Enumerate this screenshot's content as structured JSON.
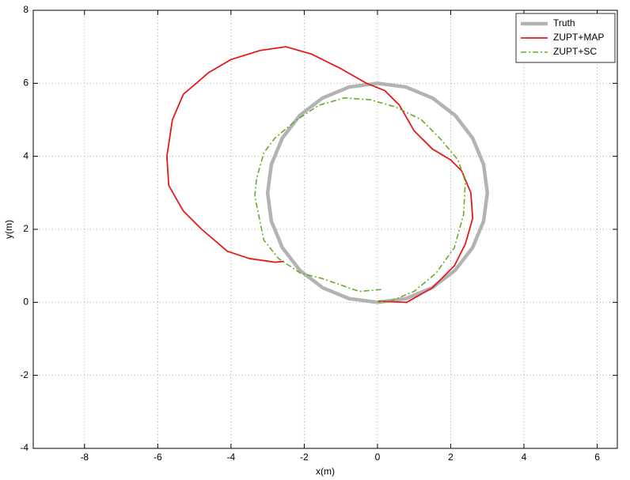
{
  "chart_data": {
    "type": "line",
    "xlabel": "x(m)",
    "ylabel": "y(m)",
    "xlim": [
      -9.4,
      6.55
    ],
    "ylim": [
      -4,
      8
    ],
    "xticks": [
      -8,
      -6,
      -4,
      -2,
      0,
      2,
      4,
      6
    ],
    "yticks": [
      -4,
      -2,
      0,
      2,
      4,
      6,
      8
    ],
    "grid": true,
    "legend": "northeast",
    "series": [
      {
        "name": "Truth",
        "color": "#b3b3b3",
        "line_style": "solid",
        "x": [
          0,
          0.776,
          1.5,
          2.121,
          2.598,
          2.898,
          3,
          2.898,
          2.598,
          2.121,
          1.5,
          0.776,
          0,
          -0.776,
          -1.5,
          -2.121,
          -2.598,
          -2.898,
          -3,
          -2.898,
          -2.598,
          -2.121,
          -1.5,
          -0.776,
          0
        ],
        "values": [
          0,
          0.102,
          0.402,
          0.879,
          1.5,
          2.224,
          3,
          3.776,
          4.5,
          5.121,
          5.598,
          5.898,
          6,
          5.898,
          5.598,
          5.121,
          4.5,
          3.776,
          3,
          2.224,
          1.5,
          0.879,
          0.402,
          0.102,
          0
        ]
      },
      {
        "name": "ZUPT+MAP",
        "color": "#e41a1c",
        "line_style": "solid",
        "x": [
          0.02,
          0.8,
          1.5,
          2.1,
          2.4,
          2.6,
          2.55,
          2.3,
          2.0,
          1.5,
          1.0,
          0.6,
          0.2,
          -0.3,
          -1.0,
          -1.8,
          -2.5,
          -3.2,
          -4.0,
          -4.6,
          -5.3,
          -5.6,
          -5.75,
          -5.7,
          -5.3,
          -4.8,
          -4.1,
          -3.5,
          -2.8,
          -2.55
        ],
        "values": [
          0.03,
          0.0,
          0.4,
          1.0,
          1.6,
          2.3,
          3.0,
          3.6,
          3.9,
          4.2,
          4.7,
          5.4,
          5.8,
          6.0,
          6.4,
          6.8,
          7.0,
          6.9,
          6.65,
          6.3,
          5.7,
          5.0,
          4.0,
          3.2,
          2.5,
          2.0,
          1.4,
          1.2,
          1.1,
          1.12
        ]
      },
      {
        "name": "ZUPT+SC",
        "color": "#6aaa2a",
        "line_style": "dashdot",
        "x": [
          0.1,
          -0.5,
          -1.5,
          -2.1,
          -2.7,
          -3.1,
          -3.35,
          -3.3,
          -3.1,
          -2.8,
          -2.2,
          -1.6,
          -0.9,
          -0.2,
          0.5,
          1.2,
          1.7,
          2.2,
          2.4,
          2.35,
          2.1,
          1.6,
          1.0,
          0.4,
          0.0
        ],
        "values": [
          0.35,
          0.3,
          0.65,
          0.8,
          1.2,
          1.7,
          2.9,
          3.4,
          4.1,
          4.5,
          5.0,
          5.4,
          5.6,
          5.55,
          5.35,
          5.0,
          4.5,
          3.9,
          3.3,
          2.4,
          1.5,
          0.8,
          0.3,
          0.05,
          0.0
        ]
      }
    ]
  }
}
